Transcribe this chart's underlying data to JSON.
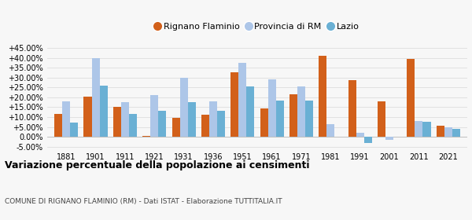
{
  "years": [
    1881,
    1901,
    1911,
    1921,
    1931,
    1936,
    1951,
    1961,
    1971,
    1981,
    1991,
    2001,
    2011,
    2021
  ],
  "rignano": [
    11.5,
    20.5,
    15.0,
    0.5,
    9.5,
    11.0,
    32.5,
    14.5,
    21.5,
    41.0,
    28.5,
    18.0,
    39.5,
    5.5
  ],
  "provincia": [
    18.0,
    40.0,
    17.5,
    21.0,
    30.0,
    18.0,
    37.5,
    29.0,
    25.5,
    6.5,
    2.0,
    -1.5,
    8.0,
    5.0
  ],
  "lazio": [
    7.0,
    26.0,
    11.5,
    13.0,
    17.5,
    13.0,
    25.5,
    18.5,
    18.5,
    null,
    -3.0,
    null,
    7.5,
    4.0
  ],
  "color_rignano": "#d2601a",
  "color_provincia": "#adc6e8",
  "color_lazio": "#6ab0d4",
  "title": "Variazione percentuale della popolazione ai censimenti",
  "subtitle": "COMUNE DI RIGNANO FLAMINIO (RM) - Dati ISTAT - Elaborazione TUTTITALIA.IT",
  "legend_labels": [
    "Rignano Flaminio",
    "Provincia di RM",
    "Lazio"
  ],
  "ylim": [
    -6.5,
    47
  ],
  "yticks": [
    -5,
    0,
    5,
    10,
    15,
    20,
    25,
    30,
    35,
    40,
    45
  ],
  "background_color": "#f7f7f7",
  "grid_color": "#dddddd"
}
